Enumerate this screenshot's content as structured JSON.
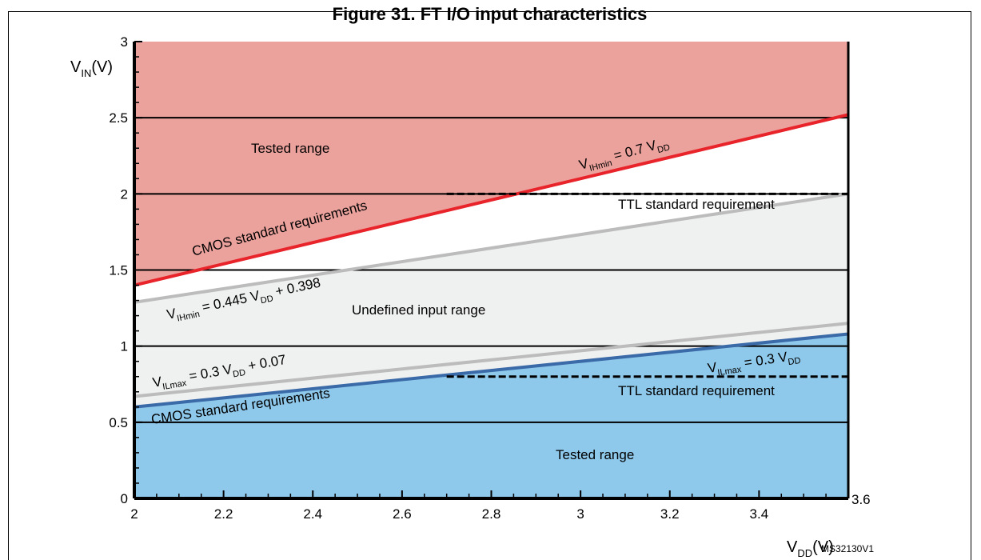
{
  "figure": {
    "title": "Figure 31. FT I/O input characteristics",
    "code": "MS32130V1"
  },
  "chart_data": {
    "type": "line",
    "title": "Figure 31. FT I/O input characteristics",
    "xlim": [
      2,
      3.6
    ],
    "ylim": [
      0,
      3
    ],
    "x_ticks": [
      "2",
      "2.2",
      "2.4",
      "2.6",
      "2.8",
      "3",
      "3.2",
      "3.4",
      "3.6"
    ],
    "y_ticks": [
      "0",
      "0.5",
      "1",
      "1.5",
      "2",
      "2.5",
      "3"
    ],
    "xlabel": {
      "main": "V",
      "sub": "DD",
      "unit": "(V)"
    },
    "ylabel": {
      "main": "V",
      "sub": "IN",
      "unit": "(V)"
    },
    "grid": "horizontal",
    "colors": {
      "cmos_high_region": "#eca29c",
      "undefined_region": "#eff0f0",
      "cmos_low_region": "#8ec8ea",
      "vihmin_cmos_line": "#e8232a",
      "vilmax_cmos_line": "#3a6aa8",
      "ft_lines": "#bcbcbc",
      "grid": "#000000"
    },
    "series": [
      {
        "name": "VIHmin = 0.7 VDD",
        "x": [
          2,
          3.6
        ],
        "y": [
          1.4,
          2.52
        ]
      },
      {
        "name": "VIHmin = 0.445 VDD + 0.398",
        "x": [
          2,
          3.6
        ],
        "y": [
          1.288,
          2.0
        ]
      },
      {
        "name": "VILmax = 0.3 VDD + 0.07",
        "x": [
          2,
          3.6
        ],
        "y": [
          0.67,
          1.15
        ]
      },
      {
        "name": "VILmax = 0.3 VDD",
        "x": [
          2,
          3.6
        ],
        "y": [
          0.6,
          1.08
        ]
      },
      {
        "name": "TTL VIH",
        "x": [
          2.7,
          3.6
        ],
        "y": [
          2.0,
          2.0
        ]
      },
      {
        "name": "TTL VIL",
        "x": [
          2.7,
          3.6
        ],
        "y": [
          0.8,
          0.8
        ]
      }
    ],
    "labels": {
      "tested_range_top": "Tested range",
      "tested_range_bottom": "Tested range",
      "cmos_upper": "CMOS standard requirements",
      "cmos_lower": "CMOS standard requirements",
      "ttl_upper": "TTL standard requirement",
      "ttl_lower": "TTL standard requirement",
      "undefined": "Undefined input range",
      "vih_cmos": {
        "v": "V",
        "sub": "IHmin",
        "eq": " = 0.7 V",
        "sub2": "DD",
        "tail": ""
      },
      "vih_ft": {
        "v": "V",
        "sub": "IHmin",
        "eq": " = 0.445 V",
        "sub2": "DD",
        "tail": " + 0.398"
      },
      "vil_ft": {
        "v": "V",
        "sub": "ILmax",
        "eq": " = 0.3 V",
        "sub2": "DD",
        "tail": " + 0.07"
      },
      "vil_cmos": {
        "v": "V",
        "sub": "ILmax",
        "eq": " = 0.3 V",
        "sub2": "DD",
        "tail": ""
      }
    }
  }
}
